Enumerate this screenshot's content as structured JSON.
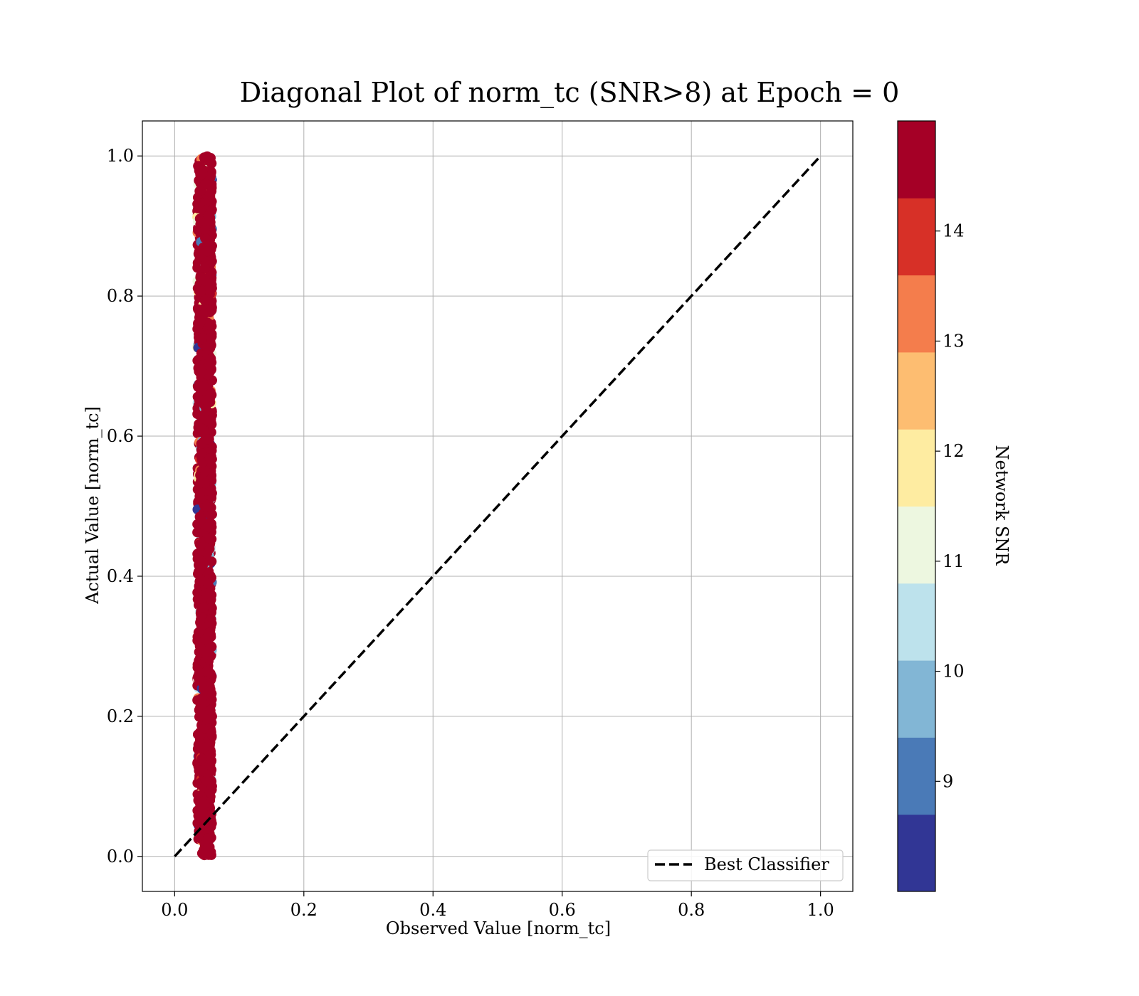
{
  "chart_data": {
    "type": "scatter",
    "title": "Diagonal Plot of norm_tc (SNR>8) at Epoch = 0",
    "xlabel": "Observed Value [norm_tc]",
    "ylabel": "Actual Value [norm_tc]",
    "xlim": [
      -0.05,
      1.05
    ],
    "ylim": [
      -0.05,
      1.05
    ],
    "xticks": [
      "0.0",
      "0.2",
      "0.4",
      "0.6",
      "0.8",
      "1.0"
    ],
    "yticks": [
      "0.0",
      "0.2",
      "0.4",
      "0.6",
      "0.8",
      "1.0"
    ],
    "grid": true,
    "scatter": {
      "x_range": [
        0.035,
        0.058
      ],
      "y_range": [
        0.0,
        1.0
      ],
      "colormap": "RdYlBu_r discrete",
      "dominant_color": "#a50026"
    },
    "reference_line": {
      "name": "Best Classifier",
      "x": [
        0.0,
        1.0
      ],
      "y": [
        0.0,
        1.0
      ],
      "style": "dashed",
      "color": "#000000"
    },
    "legend": {
      "location": "lower-right",
      "entries": [
        "Best Classifier"
      ]
    },
    "colorbar": {
      "label": "Network SNR",
      "min": 8.0,
      "max": 15.0,
      "ticks": [
        "9",
        "10",
        "11",
        "12",
        "13",
        "14"
      ],
      "tick_values": [
        9,
        10,
        11,
        12,
        13,
        14
      ],
      "colors": [
        "#313695",
        "#4a7ab7",
        "#82b6d5",
        "#bde2ec",
        "#edf7e0",
        "#feeca1",
        "#fdbd71",
        "#f47d4c",
        "#d73027",
        "#a50026"
      ]
    }
  }
}
